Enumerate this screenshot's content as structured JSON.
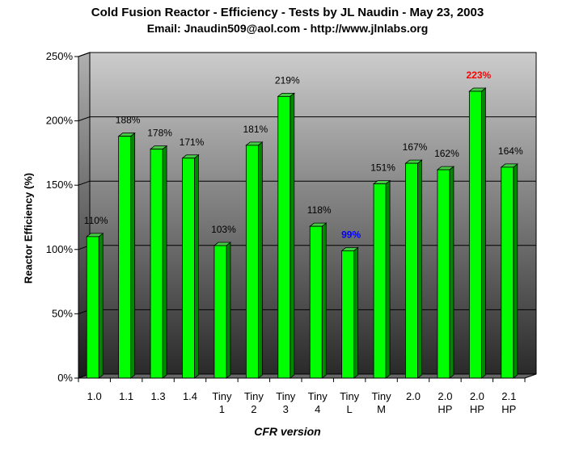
{
  "chart_data": {
    "type": "bar",
    "title": "Cold Fusion Reactor - Efficiency - Tests by JL Naudin - May 23, 2003",
    "subtitle": "Email: Jnaudin509@aol.com - http://www.jlnlabs.org",
    "xlabel": "CFR version",
    "ylabel": "Reactor Efficiency (%)",
    "ylim": [
      0,
      250
    ],
    "yticks": [
      "0%",
      "50%",
      "100%",
      "150%",
      "200%",
      "250%"
    ],
    "grid": true,
    "categories": [
      [
        "1.0"
      ],
      [
        "1.1"
      ],
      [
        "1.3"
      ],
      [
        "1.4"
      ],
      [
        "Tiny",
        "1"
      ],
      [
        "Tiny",
        "2"
      ],
      [
        "Tiny",
        "3"
      ],
      [
        "Tiny",
        "4"
      ],
      [
        "Tiny",
        "L"
      ],
      [
        "Tiny",
        "M"
      ],
      [
        "2.0"
      ],
      [
        "2.0",
        "HP"
      ],
      [
        "2.0",
        "HP"
      ],
      [
        "2.1",
        "HP"
      ]
    ],
    "values": [
      110,
      188,
      178,
      171,
      103,
      181,
      219,
      118,
      99,
      151,
      167,
      162,
      223,
      164
    ],
    "data_labels": [
      "110%",
      "188%",
      "178%",
      "171%",
      "103%",
      "181%",
      "219%",
      "118%",
      "99%",
      "151%",
      "167%",
      "162%",
      "223%",
      "164%"
    ],
    "highlight_labels": {
      "8": "#0000ff",
      "12": "#ff0000"
    },
    "colors": {
      "bar": "#00ff00",
      "bar_side": "#008800",
      "bar_top": "#44cc44"
    }
  }
}
